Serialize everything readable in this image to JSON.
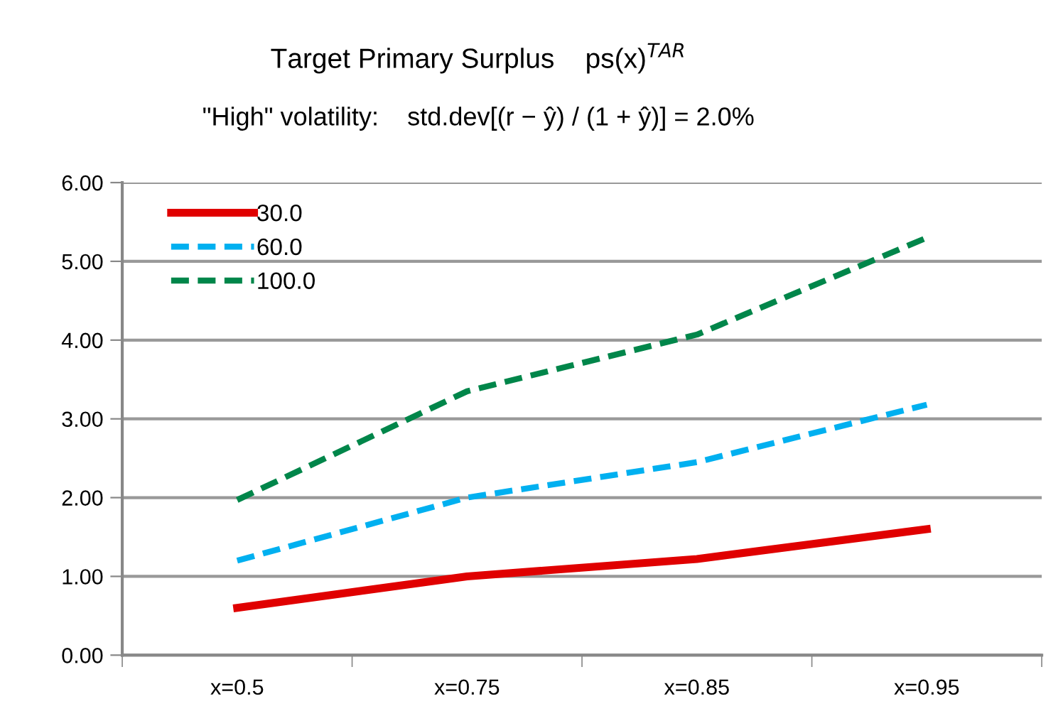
{
  "chart_data": {
    "type": "line",
    "title": "Target Primary Surplus    ps(x)$^{TAR}$",
    "subtitle": "\"High\" volatility:    std.dev[(r − ŷ) / (1 + ŷ)] = 2.0%",
    "categories": [
      "x=0.5",
      "x=0.75",
      "x=0.85",
      "x=0.95"
    ],
    "series": [
      {
        "name": "30.0",
        "color": "#e00000",
        "values": [
          0.6,
          1.0,
          1.22,
          1.6
        ],
        "line_style": "solid"
      },
      {
        "name": "60.0",
        "color": "#00b0f0",
        "values": [
          1.2,
          2.0,
          2.45,
          3.18
        ],
        "line_style": "dashed"
      },
      {
        "name": "100.0",
        "color": "#00864a",
        "values": [
          1.97,
          3.35,
          4.07,
          5.3
        ],
        "line_style": "dashed"
      }
    ],
    "ylim": [
      0,
      6
    ],
    "yticks": [
      {
        "value": 0,
        "label": "0.00"
      },
      {
        "value": 1,
        "label": "1.00"
      },
      {
        "value": 2,
        "label": "2.00"
      },
      {
        "value": 3,
        "label": "3.00"
      },
      {
        "value": 4,
        "label": "4.00"
      },
      {
        "value": 5,
        "label": "5.00"
      },
      {
        "value": 6,
        "label": "6.00"
      }
    ],
    "grid": "y",
    "legend": "top left",
    "marker": "none"
  }
}
